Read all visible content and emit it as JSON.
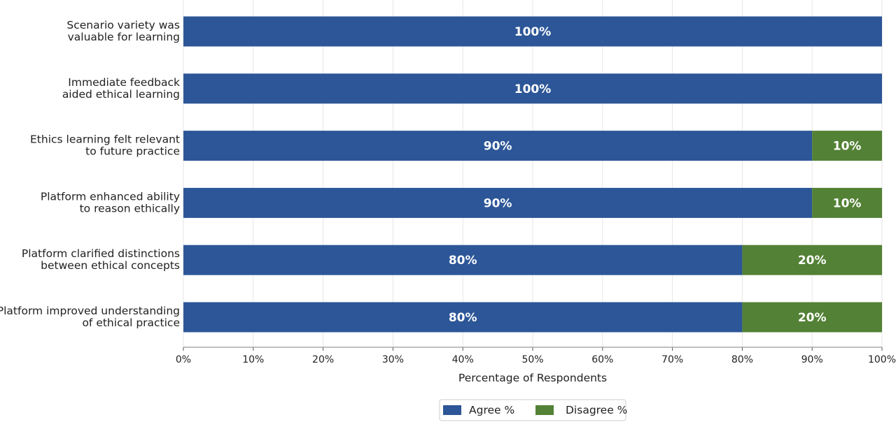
{
  "chart_data": {
    "type": "bar",
    "orientation": "horizontal",
    "stacked": true,
    "categories": [
      "Scenario variety was\nvaluable for learning",
      "Immediate feedback\naided ethical learning",
      "Ethics learning felt relevant\nto future practice",
      "Platform enhanced ability\nto reason ethically",
      "Platform clarified distinctions\nbetween ethical concepts",
      "Platform improved understanding\nof ethical practice"
    ],
    "series": [
      {
        "name": "Agree %",
        "color": "#2c5697",
        "values": [
          100,
          100,
          90,
          90,
          80,
          80
        ]
      },
      {
        "name": "Disagree %",
        "color": "#538135",
        "values": [
          0,
          0,
          10,
          10,
          20,
          20
        ]
      }
    ],
    "xlabel": "Percentage of Respondents",
    "ylabel": "",
    "xlim": [
      0,
      100
    ],
    "xticks": [
      "0%",
      "10%",
      "20%",
      "30%",
      "40%",
      "50%",
      "60%",
      "70%",
      "80%",
      "90%",
      "100%"
    ],
    "value_suffix": "%",
    "grid": "vertical",
    "legend": "bottom-center"
  }
}
